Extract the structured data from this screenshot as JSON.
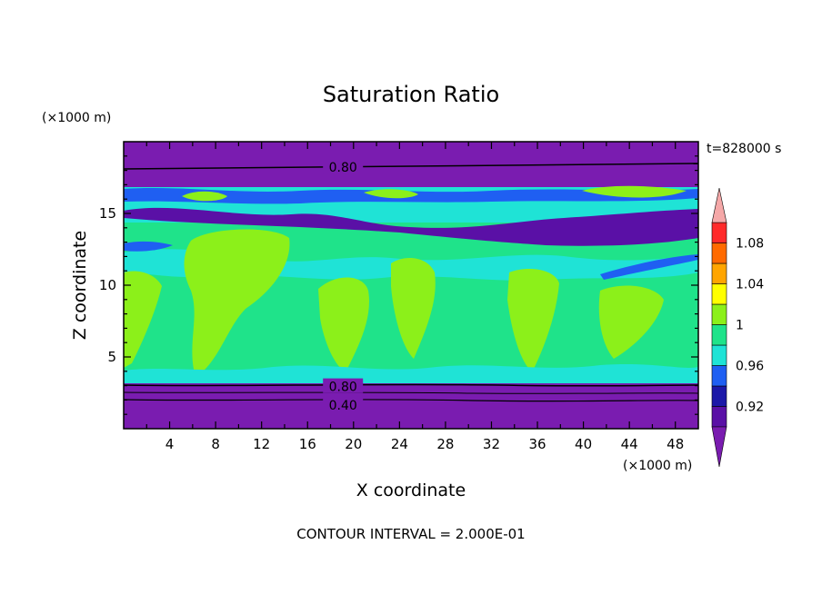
{
  "chart_data": {
    "type": "heatmap",
    "title": "Saturation Ratio",
    "xlabel": "X coordinate",
    "ylabel": "Z coordinate",
    "x_unit": "(×1000 m)",
    "y_unit": "(×1000 m)",
    "timestamp": "t=828000 s",
    "footer": "CONTOUR INTERVAL = 2.000E-01",
    "xlim": [
      0,
      50
    ],
    "ylim": [
      0,
      20
    ],
    "x_ticks": [
      4,
      8,
      12,
      16,
      20,
      24,
      28,
      32,
      36,
      40,
      44,
      48
    ],
    "y_ticks": [
      5,
      10,
      15
    ],
    "contour_labels": [
      {
        "text": "0.80",
        "x": 17.5,
        "z": 18.3
      },
      {
        "text": "0.80",
        "x": 17.5,
        "z": 3.0
      },
      {
        "text": "0.40",
        "x": 17.5,
        "z": 1.7
      }
    ],
    "colorbar": {
      "levels": [
        0.9,
        0.92,
        0.94,
        0.96,
        0.98,
        1.0,
        1.02,
        1.04,
        1.06,
        1.08,
        1.1
      ],
      "labels": [
        "0.92",
        "0.96",
        "1",
        "1.04",
        "1.08"
      ],
      "colors": [
        "#5a10a6",
        "#1c18a8",
        "#1f5ff2",
        "#1fe3d6",
        "#1fe38a",
        "#8cf01a",
        "#ffff00",
        "#ffa500",
        "#ff6a00",
        "#ff2a2a"
      ],
      "under_color": "#7a1cb0",
      "over_color": "#f5a8a8"
    },
    "vertical_profile": [
      {
        "z_min": 0.0,
        "z_max": 3.3,
        "value": "<0.90"
      },
      {
        "z_min": 3.3,
        "z_max": 12.0,
        "value": "0.98-1.02"
      },
      {
        "z_min": 12.0,
        "z_max": 14.0,
        "value": "0.90-1.00"
      },
      {
        "z_min": 14.0,
        "z_max": 17.5,
        "value": "0.90-1.00"
      },
      {
        "z_min": 17.5,
        "z_max": 20.0,
        "value": "<0.90"
      }
    ]
  }
}
